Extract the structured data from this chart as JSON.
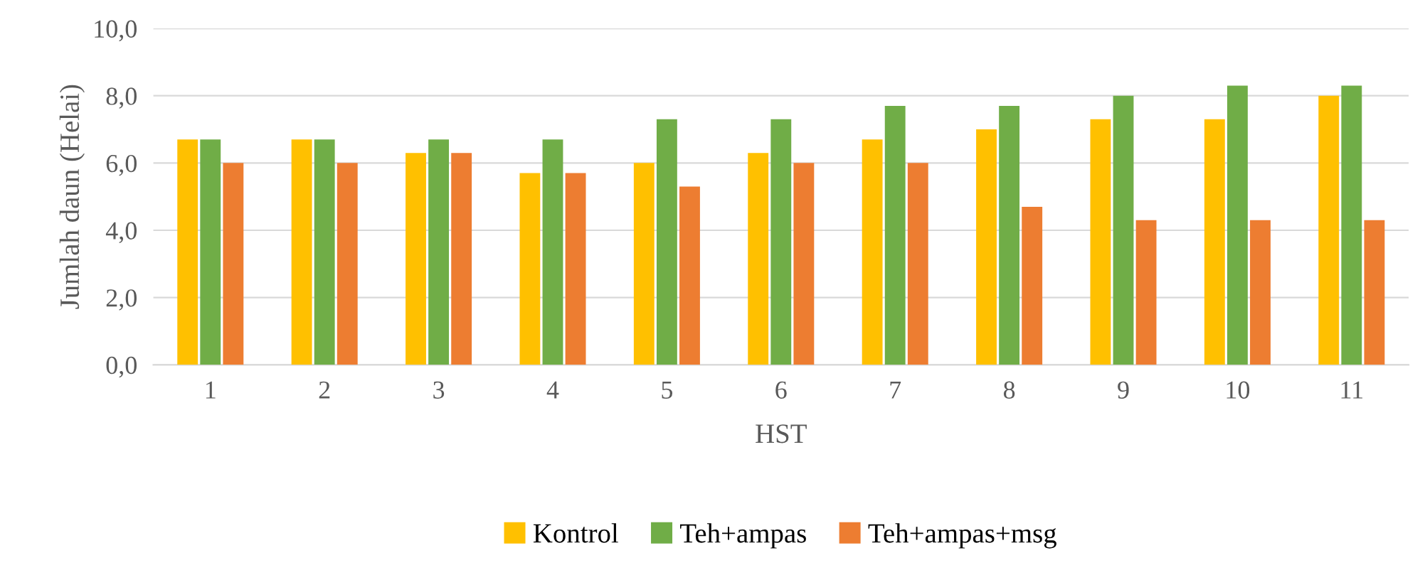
{
  "chart_data": {
    "type": "bar",
    "xlabel": "HST",
    "ylabel": "Jumlah daun (Helai)",
    "categories": [
      "1",
      "2",
      "3",
      "4",
      "5",
      "6",
      "7",
      "8",
      "9",
      "10",
      "11"
    ],
    "series": [
      {
        "name": "Kontrol",
        "color": "#ffc000",
        "values": [
          6.7,
          6.7,
          6.3,
          5.7,
          6.0,
          6.3,
          6.7,
          7.0,
          7.3,
          7.3,
          8.0
        ]
      },
      {
        "name": "Teh+ampas",
        "color": "#70ad47",
        "values": [
          6.7,
          6.7,
          6.7,
          6.7,
          7.3,
          7.3,
          7.7,
          7.7,
          8.0,
          8.3,
          8.3
        ]
      },
      {
        "name": "Teh+ampas+msg",
        "color": "#ed7d31",
        "values": [
          6.0,
          6.0,
          6.3,
          5.7,
          5.3,
          6.0,
          6.0,
          4.7,
          4.3,
          4.3,
          4.3
        ]
      }
    ],
    "ylim": [
      0,
      10
    ],
    "yticks": [
      {
        "value": 0,
        "label": "0,0"
      },
      {
        "value": 2,
        "label": "2,0"
      },
      {
        "value": 4,
        "label": "4,0"
      },
      {
        "value": 6,
        "label": "6,0"
      },
      {
        "value": 8,
        "label": "8,0"
      },
      {
        "value": 10,
        "label": "10,0"
      }
    ],
    "grid": "y",
    "legend": "bottom"
  }
}
